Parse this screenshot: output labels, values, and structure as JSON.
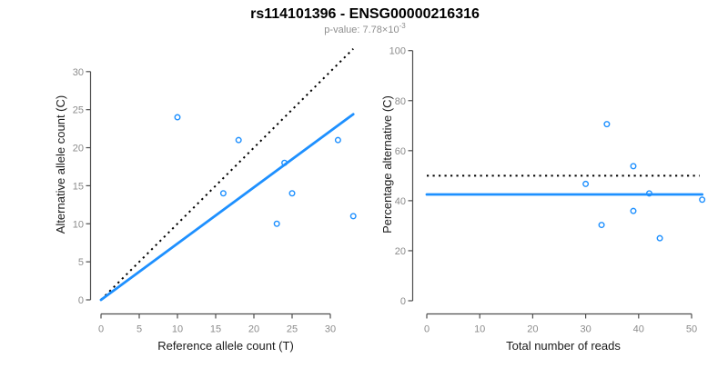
{
  "header": {
    "title": "rs114101396 - ENSG00000216316",
    "subtitle_prefix": "p-value: 7.78×10",
    "subtitle_exponent": "-3"
  },
  "colors": {
    "title": "#000000",
    "subtitle": "#8E8E8E",
    "axis_line": "#4E4E4E",
    "tick_label": "#8C8C8C",
    "axis_title": "#1A1A1A",
    "regression_line": "#1E90FF",
    "point_stroke": "#1E90FF",
    "identity_line": "#000000"
  },
  "chart_data": [
    {
      "type": "scatter",
      "name": "allele-counts",
      "xlabel": "Reference allele count (T)",
      "ylabel": "Alternative allele count (C)",
      "xlim": [
        0,
        33
      ],
      "ylim": [
        0,
        33
      ],
      "x_ticks": [
        0,
        5,
        10,
        15,
        20,
        25,
        30
      ],
      "y_ticks": [
        0,
        5,
        10,
        15,
        20,
        25,
        30
      ],
      "grid": false,
      "legend": "none",
      "points": [
        {
          "x": 10,
          "y": 24
        },
        {
          "x": 16,
          "y": 14
        },
        {
          "x": 18,
          "y": 21
        },
        {
          "x": 23,
          "y": 10
        },
        {
          "x": 24,
          "y": 18
        },
        {
          "x": 25,
          "y": 14
        },
        {
          "x": 31,
          "y": 21
        },
        {
          "x": 33,
          "y": 11
        }
      ],
      "lines": [
        {
          "name": "identity",
          "style": "dotted",
          "color": "#000000",
          "x1": 0,
          "y1": 0,
          "x2": 33,
          "y2": 33
        },
        {
          "name": "fit",
          "style": "solid",
          "color": "#1E90FF",
          "x1": 0,
          "y1": 0,
          "x2": 33,
          "y2": 24.4
        }
      ]
    },
    {
      "type": "scatter",
      "name": "percentage-vs-reads",
      "xlabel": "Total number of reads",
      "ylabel": "Percentage alternative (C)",
      "xlim": [
        0,
        52
      ],
      "ylim": [
        0,
        100
      ],
      "x_ticks": [
        0,
        10,
        20,
        30,
        40,
        50
      ],
      "y_ticks": [
        0,
        20,
        40,
        60,
        80,
        100
      ],
      "grid": false,
      "legend": "none",
      "points": [
        {
          "x": 30,
          "y": 46.7
        },
        {
          "x": 33,
          "y": 30.3
        },
        {
          "x": 34,
          "y": 70.6
        },
        {
          "x": 39,
          "y": 53.8
        },
        {
          "x": 39,
          "y": 35.9
        },
        {
          "x": 42,
          "y": 42.9
        },
        {
          "x": 44,
          "y": 25.0
        },
        {
          "x": 52,
          "y": 40.4
        }
      ],
      "lines": [
        {
          "name": "expected-50pct",
          "style": "dotted",
          "color": "#000000",
          "x1": 0,
          "y1": 50,
          "x2": 51.5,
          "y2": 50
        },
        {
          "name": "mean-percentage",
          "style": "solid",
          "color": "#1E90FF",
          "x1": 0,
          "y1": 42.5,
          "x2": 52,
          "y2": 42.5
        }
      ]
    }
  ]
}
